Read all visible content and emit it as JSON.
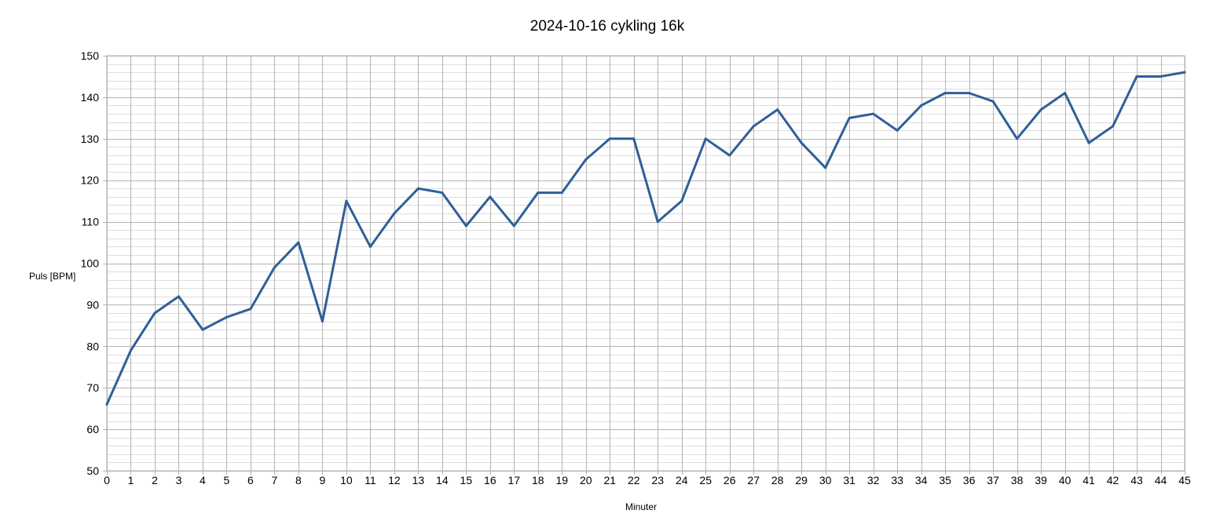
{
  "chart_data": {
    "type": "line",
    "title": "2024-10-16 cykling 16k",
    "xlabel": "Minuter",
    "ylabel": "Puls [BPM]",
    "xlim": [
      0,
      45
    ],
    "ylim": [
      50,
      150
    ],
    "x_major_tick_step": 1,
    "y_major_tick_step": 10,
    "y_minor_tick_step": 2,
    "grid": true,
    "legend": "none",
    "x": [
      0,
      1,
      2,
      3,
      4,
      5,
      6,
      7,
      8,
      9,
      10,
      11,
      12,
      13,
      14,
      15,
      16,
      17,
      18,
      19,
      20,
      21,
      22,
      23,
      24,
      25,
      26,
      27,
      28,
      29,
      30,
      31,
      32,
      33,
      34,
      35,
      36,
      37,
      38,
      39,
      40,
      41,
      42,
      43,
      44,
      45
    ],
    "series": [
      {
        "color": "#2f5f98",
        "values": [
          66,
          79,
          88,
          92,
          84,
          87,
          89,
          99,
          105,
          86,
          115,
          104,
          112,
          118,
          117,
          109,
          116,
          109,
          117,
          117,
          125,
          130,
          130,
          110,
          115,
          130,
          126,
          133,
          137,
          129,
          123,
          135,
          136,
          132,
          138,
          141,
          141,
          139,
          130,
          137,
          141,
          129,
          133,
          145,
          145,
          146
        ]
      }
    ]
  }
}
